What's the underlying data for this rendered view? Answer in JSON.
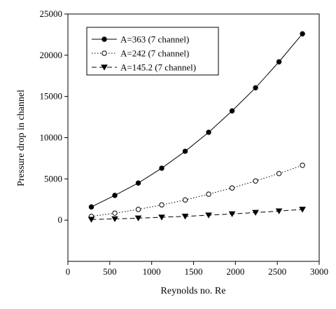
{
  "chart_data": {
    "type": "line",
    "title": "",
    "xlabel": "Reynolds no. Re",
    "ylabel": "Pressure drop in channel",
    "xlim": [
      0,
      3000
    ],
    "ylim": [
      -5000,
      25000
    ],
    "xticks": [
      0,
      500,
      1000,
      1500,
      2000,
      2500,
      3000
    ],
    "yticks": [
      0,
      5000,
      10000,
      15000,
      20000,
      25000
    ],
    "grid": false,
    "legend_position": "top-left",
    "series": [
      {
        "name": "A=363 (7 channel)",
        "marker": "filled-circle",
        "line_style": "solid",
        "x": [
          280,
          560,
          840,
          1120,
          1400,
          1680,
          1960,
          2240,
          2520,
          2800
        ],
        "y": [
          1600,
          3000,
          4500,
          6300,
          8350,
          10650,
          13250,
          16050,
          19200,
          22600
        ]
      },
      {
        "name": "A=242 (7 channel)",
        "marker": "open-circle",
        "line_style": "dotted",
        "x": [
          280,
          560,
          840,
          1120,
          1400,
          1680,
          1960,
          2240,
          2520,
          2800
        ],
        "y": [
          450,
          850,
          1300,
          1850,
          2450,
          3150,
          3900,
          4750,
          5650,
          6650
        ]
      },
      {
        "name": "A=145.2 (7 channel)",
        "marker": "filled-triangle-down",
        "line_style": "dashed",
        "x": [
          280,
          560,
          840,
          1120,
          1400,
          1680,
          1960,
          2240,
          2520,
          2800
        ],
        "y": [
          80,
          150,
          240,
          350,
          460,
          600,
          750,
          920,
          1100,
          1300
        ]
      }
    ]
  }
}
